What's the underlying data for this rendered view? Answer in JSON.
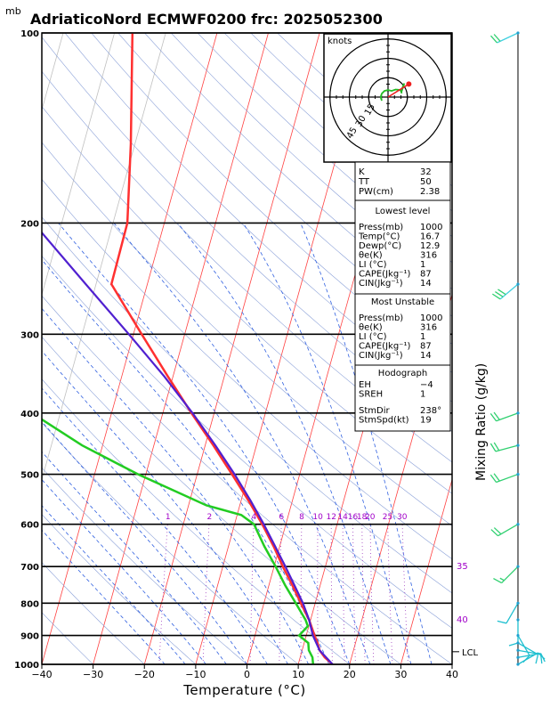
{
  "header": {
    "unit_mb": "mb",
    "title": "AdriaticoNord ECMWF0200 frc: 2025052300"
  },
  "chart_data": {
    "type": "skew-t log-p sounding",
    "xlabel": "Temperature (°C)",
    "ylabel_right": "Mixing Ratio (g/kg)",
    "x_ticks": [
      -40,
      -30,
      -20,
      -10,
      0,
      10,
      20,
      30,
      40
    ],
    "x_tick_labels": [
      "−40",
      "−30",
      "−20",
      "−10",
      "0",
      "10",
      "20",
      "30",
      "40"
    ],
    "p_levels": [
      100,
      200,
      300,
      400,
      500,
      600,
      700,
      800,
      900,
      1000
    ],
    "p_level_labels": [
      "100",
      "200",
      "300",
      "400",
      "500",
      "600",
      "700",
      "800",
      "900",
      "1000"
    ],
    "xlim": [
      -40,
      40
    ],
    "ylim_mb": [
      1000,
      100
    ],
    "temperature": {
      "p": [
        1000,
        975,
        950,
        925,
        900,
        850,
        800,
        750,
        700,
        650,
        600,
        550,
        500,
        450,
        400,
        350,
        300,
        250,
        200,
        150,
        100
      ],
      "t": [
        16.7,
        14.8,
        13.4,
        12.6,
        11.6,
        9.7,
        7.2,
        4.6,
        1.7,
        -1.2,
        -4.6,
        -8.6,
        -13.2,
        -18.4,
        -24.4,
        -31.0,
        -38.4,
        -47.0,
        -47.2,
        -50.8,
        -56.5
      ],
      "color": "#ff3030"
    },
    "dewpoint": {
      "p": [
        1000,
        975,
        950,
        925,
        900,
        870,
        850,
        800,
        750,
        700,
        650,
        600,
        580,
        560,
        500,
        450,
        400,
        350,
        300,
        250,
        200,
        150,
        100
      ],
      "td": [
        12.9,
        12.4,
        11.3,
        10.8,
        8.6,
        9.8,
        9.0,
        6.2,
        3.2,
        0.3,
        -3.0,
        -6.2,
        -9.2,
        -16.5,
        -31.5,
        -44.0,
        -55.5,
        -57.0,
        -60.5,
        -65.0,
        -72.0,
        -79.0,
        -88.0
      ],
      "color": "#22cc22"
    },
    "parcel": {
      "p": [
        1000,
        950,
        900,
        850,
        800,
        750,
        700,
        650,
        600,
        550,
        500,
        450,
        400,
        350,
        300,
        250,
        200,
        150,
        120
      ],
      "t": [
        16.7,
        13.4,
        11.3,
        9.7,
        7.6,
        5.0,
        2.2,
        -0.9,
        -4.3,
        -8.2,
        -12.7,
        -18.0,
        -24.2,
        -31.7,
        -40.9,
        -52.0,
        -65.5,
        -81.5,
        -92.0
      ],
      "color": "#5020d0"
    },
    "mixing_ratio_lines": [
      1,
      2,
      4,
      6,
      8,
      10,
      12,
      14,
      16,
      18,
      20,
      25,
      30
    ],
    "mixing_ratio_labels": [
      "1",
      "2",
      "4",
      "6",
      "8",
      "10",
      "12",
      "14",
      "16",
      "18",
      "20",
      "25",
      "30"
    ],
    "theta_labels": [
      {
        "p": 700,
        "text": "35"
      },
      {
        "p": 850,
        "text": "40"
      }
    ],
    "lcl": {
      "p": 955,
      "label": "LCL"
    },
    "wind_profile": {
      "p": [
        100,
        250,
        400,
        450,
        500,
        600,
        700,
        800,
        850,
        900,
        925,
        950,
        975,
        1000
      ],
      "speed_kt": [
        20,
        30,
        20,
        20,
        20,
        20,
        15,
        10,
        10,
        10,
        10,
        10,
        10,
        10
      ],
      "dir_deg": [
        245,
        230,
        250,
        255,
        250,
        240,
        225,
        210,
        180,
        150,
        120,
        100,
        80,
        60
      ]
    },
    "hodograph": {
      "unit": "knots",
      "rings_kt": [
        15,
        30,
        45
      ],
      "ring_labels": [
        "15",
        "30",
        "45"
      ],
      "storm_motion_dir_deg": 238,
      "storm_motion_speed_kt": 19
    }
  },
  "indices": {
    "general": [
      {
        "label": "K",
        "value": "32"
      },
      {
        "label": "TT",
        "value": "50"
      },
      {
        "label": "PW(cm)",
        "value": "2.38"
      }
    ],
    "lowest_level": {
      "heading": "Lowest level",
      "rows": [
        {
          "label": "Press(mb)",
          "value": "1000"
        },
        {
          "label": "Temp(°C)",
          "value": "16.7"
        },
        {
          "label": "Dewp(°C)",
          "value": "12.9"
        },
        {
          "label": "θe(K)",
          "value": "316"
        },
        {
          "label": "LI (°C)",
          "value": "1"
        },
        {
          "label": "CAPE(Jkg⁻¹)",
          "value": "87"
        },
        {
          "label": "CIN(Jkg⁻¹)",
          "value": "14"
        }
      ]
    },
    "most_unstable": {
      "heading": "Most Unstable",
      "rows": [
        {
          "label": "Press(mb)",
          "value": "1000"
        },
        {
          "label": "θe(K)",
          "value": "316"
        },
        {
          "label": "LI (°C)",
          "value": "1"
        },
        {
          "label": "CAPE(Jkg⁻¹)",
          "value": "87"
        },
        {
          "label": "CIN(Jkg⁻¹)",
          "value": "14"
        }
      ]
    },
    "hodograph_box": {
      "heading": "Hodograph",
      "rows": [
        {
          "label": "EH",
          "value": "−4"
        },
        {
          "label": "SREH",
          "value": "1"
        }
      ],
      "storm_rows": [
        {
          "label": "StmDir",
          "value": "238°"
        },
        {
          "label": "StmSpd(kt)",
          "value": "19"
        }
      ]
    }
  }
}
